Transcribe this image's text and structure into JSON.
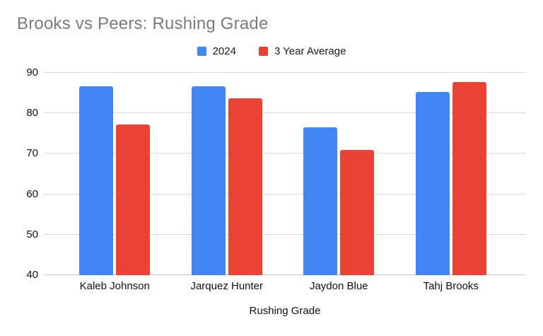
{
  "chart_data": {
    "type": "bar",
    "title": "Brooks vs Peers: Rushing Grade",
    "xlabel": "Rushing Grade",
    "ylabel": "",
    "categories": [
      "Kaleb Johnson",
      "Jarquez Hunter",
      "Jaydon Blue",
      "Tahj Brooks"
    ],
    "series": [
      {
        "name": "2024",
        "color": "#4285F4",
        "values": [
          86.6,
          86.7,
          76.5,
          85.3
        ]
      },
      {
        "name": "3 Year Average",
        "color": "#EA4335",
        "values": [
          77.2,
          83.7,
          70.9,
          87.8
        ]
      }
    ],
    "ylim": [
      40,
      90
    ],
    "ytick_step": 10,
    "yticks": [
      40,
      50,
      60,
      70,
      80,
      90
    ],
    "grid": true,
    "legend_position": "top"
  },
  "colors": {
    "background": "#ffffff",
    "title_text": "#7b7b7b",
    "axis_text": "#111111",
    "gridline": "#dadada",
    "axis_line": "#c6c6c6",
    "series_blue": "#4285F4",
    "series_red": "#EA4335"
  }
}
